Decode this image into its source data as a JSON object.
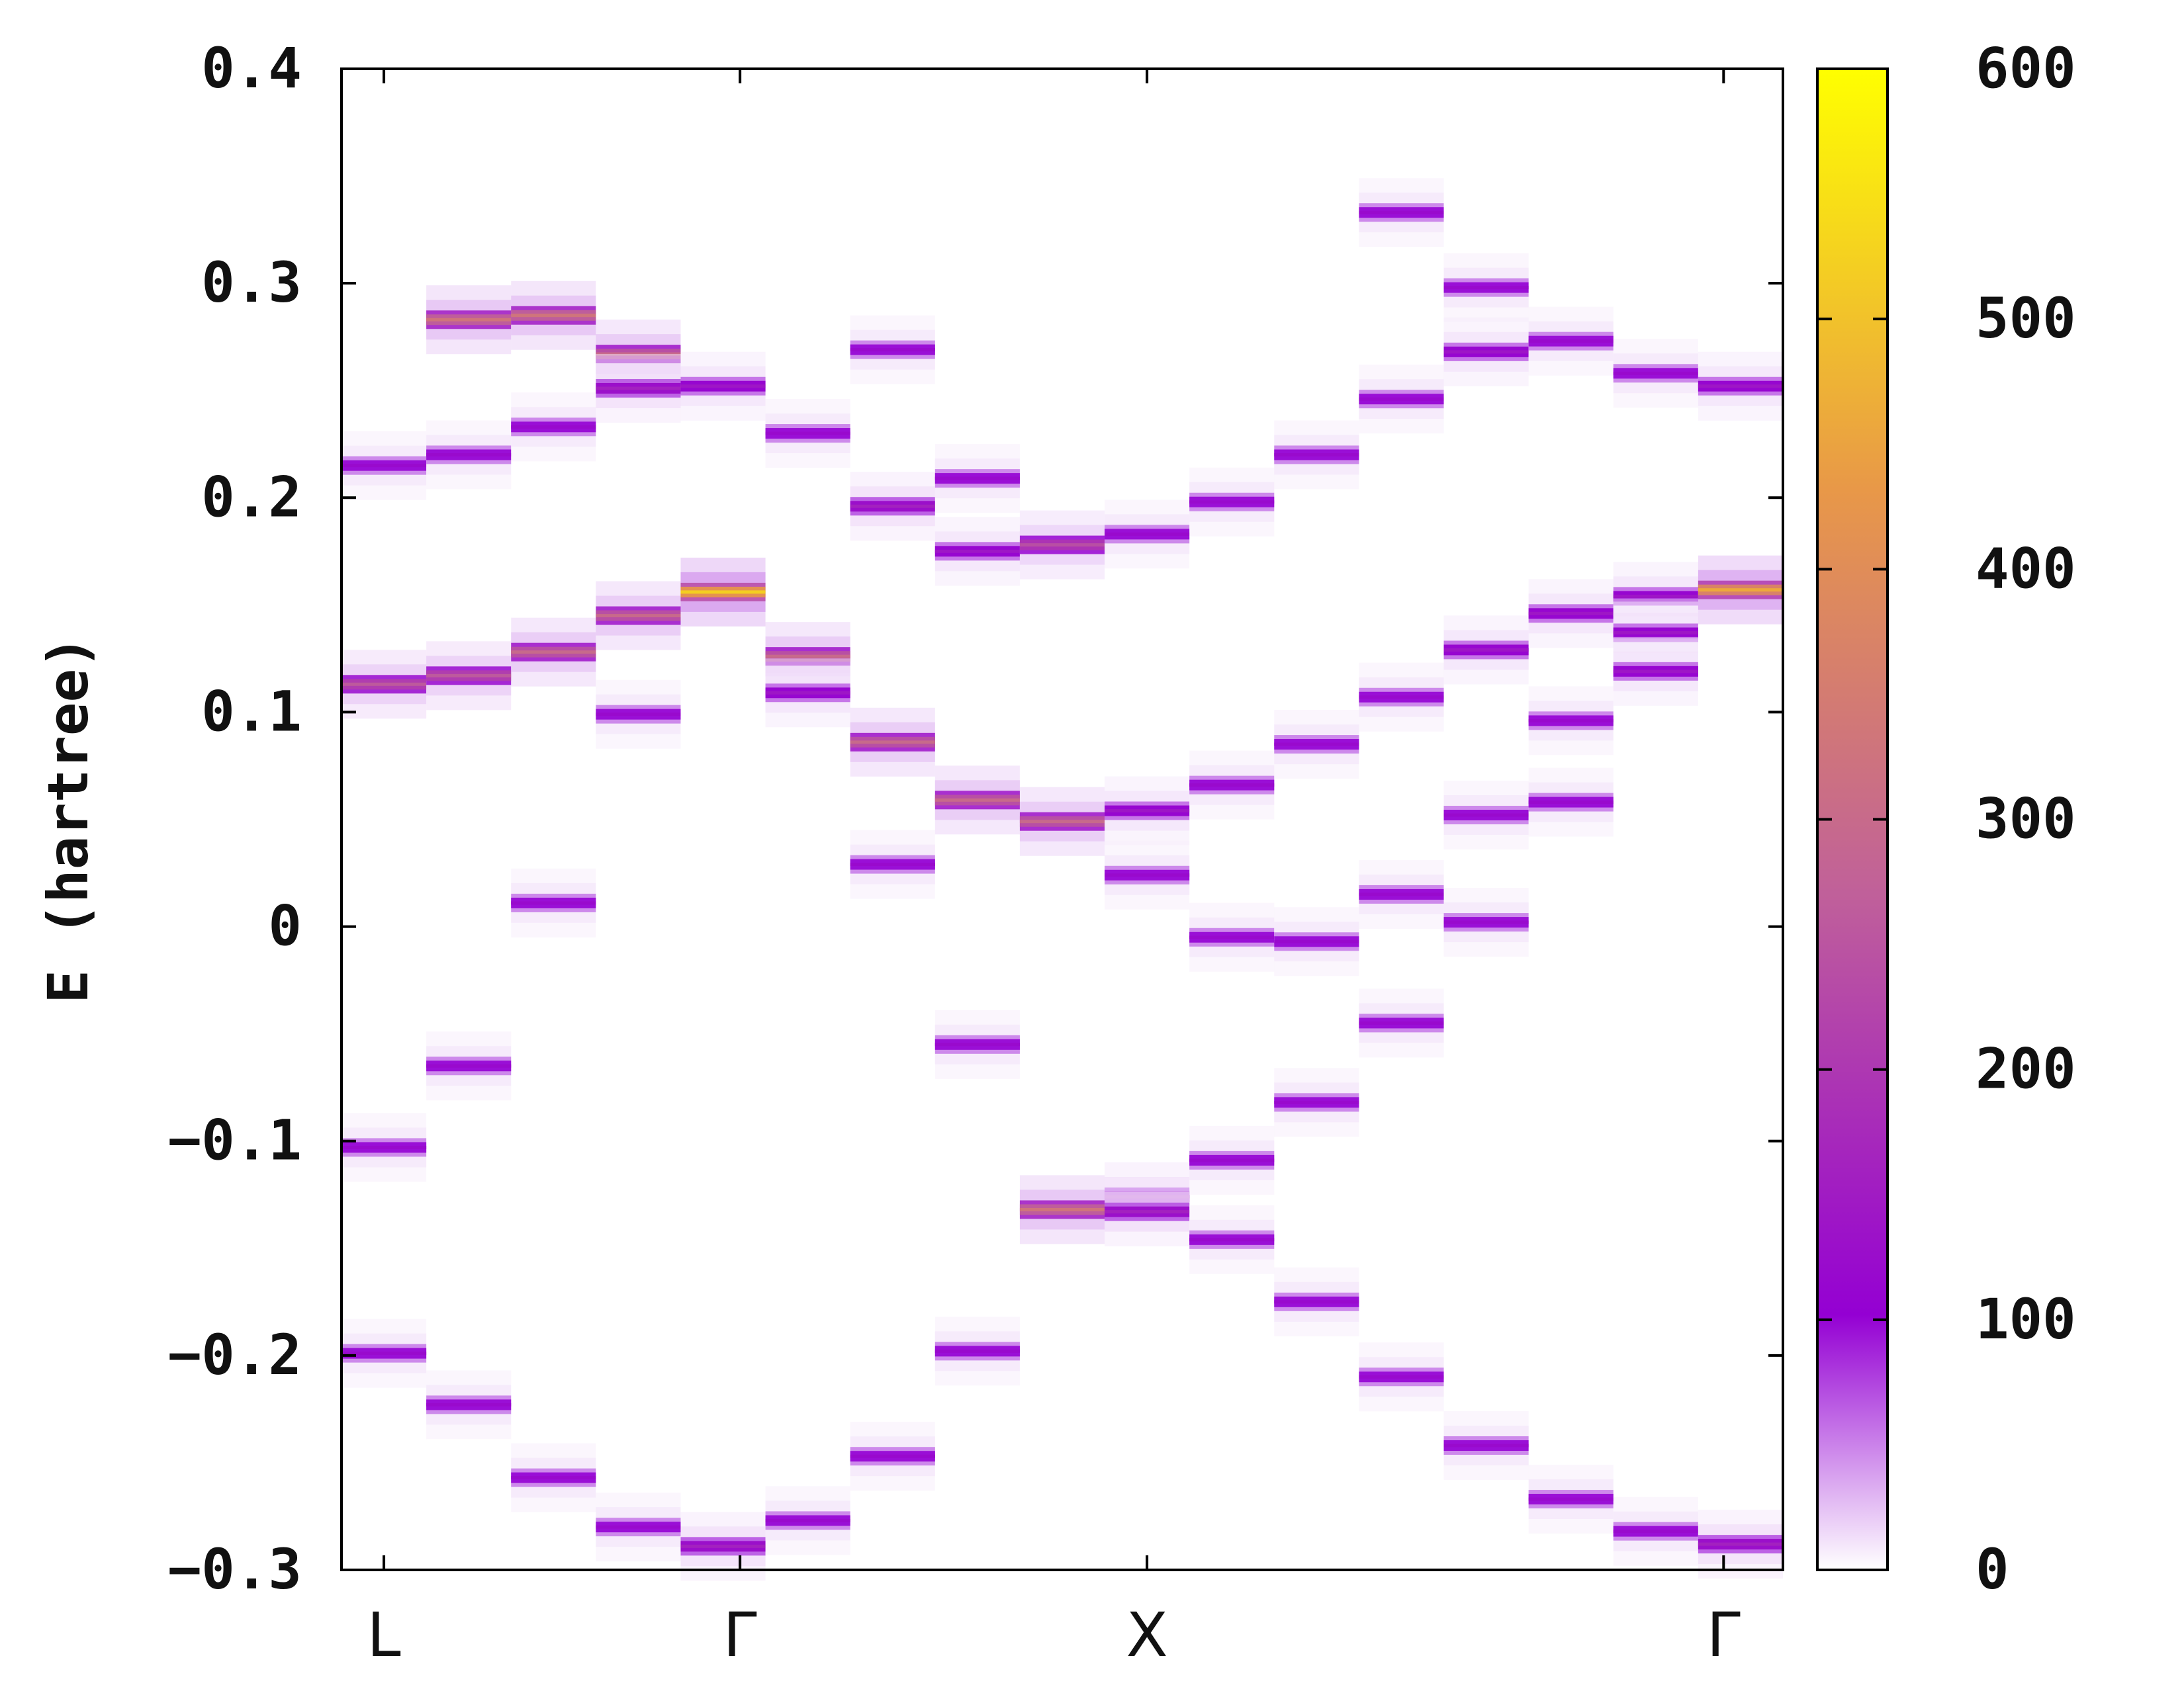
{
  "chart_data": {
    "type": "heatmap",
    "title": "",
    "xlabel": "",
    "ylabel": "E (hartree)",
    "ylim": [
      -0.3,
      0.4
    ],
    "yticks": [
      "0.4",
      "0.3",
      "0.2",
      "0.1",
      "0",
      "−0.1",
      "−0.2",
      "−0.3"
    ],
    "ytick_values": [
      0.4,
      0.3,
      0.2,
      0.1,
      0,
      -0.1,
      -0.2,
      -0.3
    ],
    "x_ticks": [
      {
        "label": "L",
        "k": 0
      },
      {
        "label": "Γ",
        "k": 4.2
      },
      {
        "label": "X",
        "k": 9.0
      },
      {
        "label": "Γ",
        "k": 15.8
      }
    ],
    "k_range": [
      -0.5,
      16.5
    ],
    "colorbar": {
      "range": [
        0,
        600
      ],
      "ticks": [
        "600",
        "500",
        "400",
        "300",
        "200",
        "100",
        "0"
      ],
      "tick_values": [
        600,
        500,
        400,
        300,
        200,
        100,
        0
      ],
      "colors": [
        "#ffffff",
        "#9400d3",
        "#c0609a",
        "#e89848",
        "#ffff00"
      ]
    },
    "columns": [
      {
        "k": 0,
        "bands": [
          {
            "e": 0.215,
            "i": 120
          },
          {
            "e": 0.113,
            "i": 260
          },
          {
            "e": -0.103,
            "i": 120
          },
          {
            "e": -0.199,
            "i": 120
          }
        ]
      },
      {
        "k": 1,
        "bands": [
          {
            "e": 0.283,
            "i": 330
          },
          {
            "e": 0.22,
            "i": 120
          },
          {
            "e": 0.117,
            "i": 260
          },
          {
            "e": -0.065,
            "i": 120
          },
          {
            "e": -0.223,
            "i": 120
          }
        ]
      },
      {
        "k": 2,
        "bands": [
          {
            "e": 0.285,
            "i": 330
          },
          {
            "e": 0.233,
            "i": 120
          },
          {
            "e": 0.128,
            "i": 300
          },
          {
            "e": 0.011,
            "i": 120
          },
          {
            "e": -0.257,
            "i": 120
          }
        ]
      },
      {
        "k": 3,
        "bands": [
          {
            "e": 0.267,
            "i": 300
          },
          {
            "e": 0.251,
            "i": 160
          },
          {
            "e": 0.145,
            "i": 300
          },
          {
            "e": 0.099,
            "i": 120
          },
          {
            "e": -0.28,
            "i": 120
          }
        ]
      },
      {
        "k": 4,
        "bands": [
          {
            "e": 0.252,
            "i": 140
          },
          {
            "e": 0.156,
            "i": 520
          },
          {
            "e": -0.289,
            "i": 160
          }
        ]
      },
      {
        "k": 5,
        "bands": [
          {
            "e": 0.23,
            "i": 120
          },
          {
            "e": 0.126,
            "i": 300
          },
          {
            "e": 0.109,
            "i": 140
          },
          {
            "e": -0.277,
            "i": 120
          }
        ]
      },
      {
        "k": 6,
        "bands": [
          {
            "e": 0.269,
            "i": 120
          },
          {
            "e": 0.196,
            "i": 160
          },
          {
            "e": 0.086,
            "i": 300
          },
          {
            "e": 0.029,
            "i": 120
          },
          {
            "e": -0.247,
            "i": 120
          }
        ]
      },
      {
        "k": 7,
        "bands": [
          {
            "e": 0.209,
            "i": 120
          },
          {
            "e": 0.175,
            "i": 140
          },
          {
            "e": 0.059,
            "i": 300
          },
          {
            "e": -0.055,
            "i": 120
          },
          {
            "e": -0.198,
            "i": 120
          }
        ]
      },
      {
        "k": 8,
        "bands": [
          {
            "e": 0.178,
            "i": 240
          },
          {
            "e": 0.049,
            "i": 300
          },
          {
            "e": -0.132,
            "i": 330
          }
        ]
      },
      {
        "k": 9,
        "bands": [
          {
            "e": 0.183,
            "i": 120
          },
          {
            "e": 0.054,
            "i": 140
          },
          {
            "e": 0.024,
            "i": 120
          },
          {
            "e": -0.126,
            "i": 160
          },
          {
            "e": -0.133,
            "i": 160
          }
        ]
      },
      {
        "k": 10,
        "bands": [
          {
            "e": 0.198,
            "i": 120
          },
          {
            "e": 0.066,
            "i": 120
          },
          {
            "e": -0.005,
            "i": 120
          },
          {
            "e": -0.109,
            "i": 120
          },
          {
            "e": -0.146,
            "i": 120
          }
        ]
      },
      {
        "k": 11,
        "bands": [
          {
            "e": 0.22,
            "i": 120
          },
          {
            "e": 0.085,
            "i": 120
          },
          {
            "e": -0.007,
            "i": 120
          },
          {
            "e": -0.082,
            "i": 120
          },
          {
            "e": -0.175,
            "i": 120
          }
        ]
      },
      {
        "k": 12,
        "bands": [
          {
            "e": 0.333,
            "i": 120
          },
          {
            "e": 0.246,
            "i": 120
          },
          {
            "e": 0.107,
            "i": 120
          },
          {
            "e": 0.015,
            "i": 120
          },
          {
            "e": -0.045,
            "i": 120
          },
          {
            "e": -0.21,
            "i": 120
          }
        ]
      },
      {
        "k": 13,
        "bands": [
          {
            "e": 0.298,
            "i": 120
          },
          {
            "e": 0.268,
            "i": 140
          },
          {
            "e": 0.129,
            "i": 140
          },
          {
            "e": 0.052,
            "i": 120
          },
          {
            "e": 0.002,
            "i": 120
          },
          {
            "e": -0.242,
            "i": 120
          }
        ]
      },
      {
        "k": 14,
        "bands": [
          {
            "e": 0.273,
            "i": 120
          },
          {
            "e": 0.146,
            "i": 140
          },
          {
            "e": 0.096,
            "i": 120
          },
          {
            "e": 0.058,
            "i": 120
          },
          {
            "e": -0.267,
            "i": 120
          }
        ]
      },
      {
        "k": 15,
        "bands": [
          {
            "e": 0.258,
            "i": 120
          },
          {
            "e": 0.154,
            "i": 140
          },
          {
            "e": 0.137,
            "i": 140
          },
          {
            "e": 0.119,
            "i": 140
          },
          {
            "e": -0.282,
            "i": 120
          }
        ]
      },
      {
        "k": 16,
        "bands": [
          {
            "e": 0.252,
            "i": 140
          },
          {
            "e": 0.157,
            "i": 460
          },
          {
            "e": -0.288,
            "i": 160
          }
        ]
      }
    ]
  }
}
